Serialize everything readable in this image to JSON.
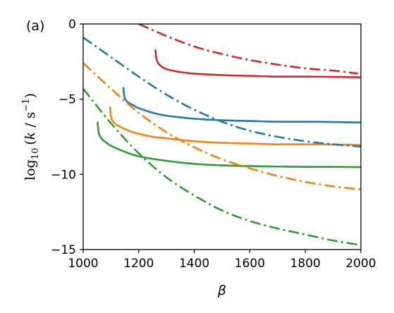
{
  "chart_data": {
    "type": "line",
    "panel_label": "(a)",
    "xlabel": "β",
    "ylabel": "log10 (k / s−1)",
    "ylabel_parts": {
      "fn": "log",
      "sub": "10",
      "open": "(",
      "var": "k",
      "mid": " / s",
      "sup": "−1",
      "close": ")"
    },
    "xlim": [
      1000,
      2000
    ],
    "ylim": [
      -15,
      0
    ],
    "xticks": [
      1000,
      1200,
      1400,
      1600,
      1800,
      2000
    ],
    "xtick_labels": [
      "1000",
      "1200",
      "1400",
      "1600",
      "1800",
      "2000"
    ],
    "yticks": [
      0,
      -5,
      -10,
      -15
    ],
    "ytick_labels": [
      "0",
      "−5",
      "−10",
      "−15"
    ],
    "grid": false,
    "legend": "none",
    "series": [
      {
        "color": "#d62728",
        "style": "solid",
        "x": [
          1260,
          1262,
          1265,
          1270,
          1280,
          1300,
          1350,
          1400,
          1500,
          1600,
          1700,
          1800,
          1900,
          2000
        ],
        "y": [
          -1.7,
          -2.1,
          -2.4,
          -2.6,
          -2.8,
          -3.0,
          -3.2,
          -3.3,
          -3.4,
          -3.45,
          -3.5,
          -3.5,
          -3.52,
          -3.55
        ]
      },
      {
        "color": "#d62728",
        "style": "dashdot",
        "x": [
          1200,
          1250,
          1300,
          1400,
          1500,
          1600,
          1700,
          1800,
          1900,
          1990
        ],
        "y": [
          0.0,
          -0.4,
          -0.8,
          -1.5,
          -2.0,
          -2.4,
          -2.7,
          -2.95,
          -3.1,
          -3.3
        ]
      },
      {
        "color": "#1f77b4",
        "style": "solid",
        "x": [
          1145,
          1147,
          1150,
          1155,
          1165,
          1180,
          1200,
          1250,
          1300,
          1400,
          1500,
          1600,
          1700,
          1800,
          1900,
          2000
        ],
        "y": [
          -4.2,
          -4.7,
          -4.95,
          -5.1,
          -5.25,
          -5.4,
          -5.6,
          -5.9,
          -6.1,
          -6.3,
          -6.4,
          -6.45,
          -6.5,
          -6.5,
          -6.52,
          -6.55
        ]
      },
      {
        "color": "#1f77b4",
        "style": "dashdot",
        "x": [
          1000,
          1100,
          1200,
          1300,
          1400,
          1500,
          1600,
          1700,
          1800,
          1900,
          2000
        ],
        "y": [
          -0.9,
          -2.2,
          -3.5,
          -4.7,
          -5.7,
          -6.5,
          -7.1,
          -7.5,
          -7.8,
          -8.0,
          -8.15
        ]
      },
      {
        "color": "#ff7f0e",
        "style": "solid",
        "x": [
          1097,
          1099,
          1102,
          1108,
          1120,
          1140,
          1180,
          1250,
          1300,
          1400,
          1500,
          1600,
          1700,
          1800,
          1900,
          2000
        ],
        "y": [
          -5.5,
          -6.0,
          -6.3,
          -6.5,
          -6.7,
          -6.9,
          -7.2,
          -7.5,
          -7.6,
          -7.8,
          -7.9,
          -7.95,
          -8.0,
          -8.0,
          -8.02,
          -8.05
        ]
      },
      {
        "color": "#ff7f0e",
        "style": "dashdot",
        "x": [
          1000,
          1100,
          1200,
          1300,
          1400,
          1500,
          1600,
          1700,
          1800,
          1900,
          2000
        ],
        "y": [
          -2.6,
          -4.3,
          -5.9,
          -7.2,
          -8.2,
          -9.0,
          -9.6,
          -10.1,
          -10.5,
          -10.8,
          -11.0
        ]
      },
      {
        "color": "#2ca02c",
        "style": "solid",
        "x": [
          1052,
          1054,
          1057,
          1062,
          1070,
          1085,
          1100,
          1150,
          1200,
          1300,
          1400,
          1500,
          1600,
          1700,
          1800,
          1900,
          2000
        ],
        "y": [
          -6.5,
          -7.0,
          -7.3,
          -7.5,
          -7.7,
          -7.9,
          -8.1,
          -8.5,
          -8.8,
          -9.1,
          -9.3,
          -9.4,
          -9.45,
          -9.48,
          -9.5,
          -9.5,
          -9.52
        ]
      },
      {
        "color": "#2ca02c",
        "style": "dashdot",
        "x": [
          1000,
          1100,
          1200,
          1300,
          1400,
          1500,
          1600,
          1700,
          1800,
          1900,
          2000
        ],
        "y": [
          -4.3,
          -6.6,
          -8.6,
          -10.2,
          -11.4,
          -12.4,
          -13.1,
          -13.6,
          -14.0,
          -14.4,
          -14.7
        ]
      }
    ]
  }
}
